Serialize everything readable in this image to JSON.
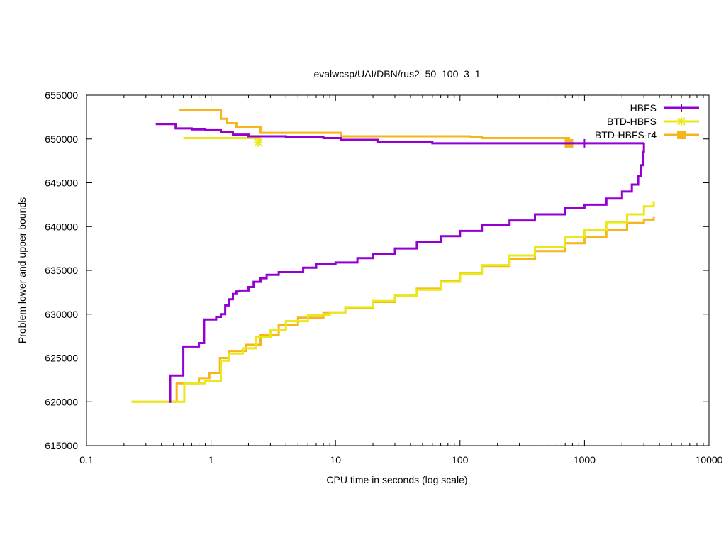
{
  "chart_data": {
    "type": "line",
    "title": "evalwcsp/UAI/DBN/rus2_50_100_3_1",
    "xlabel": "CPU time in seconds (log scale)",
    "ylabel": "Problem lower and upper bounds",
    "xscale": "log",
    "xlim": [
      0.1,
      10000
    ],
    "ylim": [
      615000,
      655000
    ],
    "xticks": [
      {
        "v": 0.1,
        "label": "0.1"
      },
      {
        "v": 1,
        "label": "1"
      },
      {
        "v": 10,
        "label": "10"
      },
      {
        "v": 100,
        "label": "100"
      },
      {
        "v": 1000,
        "label": "1000"
      },
      {
        "v": 10000,
        "label": "10000"
      }
    ],
    "yticks": [
      {
        "v": 615000,
        "label": "615000"
      },
      {
        "v": 620000,
        "label": "620000"
      },
      {
        "v": 625000,
        "label": "625000"
      },
      {
        "v": 630000,
        "label": "630000"
      },
      {
        "v": 635000,
        "label": "635000"
      },
      {
        "v": 640000,
        "label": "640000"
      },
      {
        "v": 645000,
        "label": "645000"
      },
      {
        "v": 650000,
        "label": "650000"
      },
      {
        "v": 655000,
        "label": "655000"
      }
    ],
    "legend_position": "top-right",
    "grid": false,
    "series": [
      {
        "name": "HBFS",
        "color": "#9400d3",
        "marker": "plus",
        "marker_points": [
          [
            1000,
            649500
          ]
        ],
        "upper": [
          [
            0.36,
            651700
          ],
          [
            0.52,
            651200
          ],
          [
            0.7,
            651100
          ],
          [
            0.9,
            651000
          ],
          [
            1.2,
            650800
          ],
          [
            1.5,
            650500
          ],
          [
            2.0,
            650300
          ],
          [
            4.0,
            650200
          ],
          [
            8.0,
            650100
          ],
          [
            11.0,
            649900
          ],
          [
            22.0,
            649700
          ],
          [
            60.0,
            649500
          ],
          [
            3000,
            649500
          ]
        ],
        "lower": [
          [
            0.46,
            620000
          ],
          [
            0.47,
            623000
          ],
          [
            0.6,
            626300
          ],
          [
            0.8,
            626700
          ],
          [
            0.88,
            629400
          ],
          [
            1.1,
            629700
          ],
          [
            1.2,
            630000
          ],
          [
            1.3,
            631000
          ],
          [
            1.4,
            631700
          ],
          [
            1.5,
            632300
          ],
          [
            1.6,
            632600
          ],
          [
            1.7,
            632700
          ],
          [
            2.0,
            633100
          ],
          [
            2.2,
            633700
          ],
          [
            2.5,
            634100
          ],
          [
            2.8,
            634500
          ],
          [
            3.5,
            634800
          ],
          [
            5.5,
            635300
          ],
          [
            7.0,
            635700
          ],
          [
            10.0,
            635900
          ],
          [
            15.0,
            636400
          ],
          [
            20.0,
            636900
          ],
          [
            30.0,
            637500
          ],
          [
            45.0,
            638200
          ],
          [
            70.0,
            638900
          ],
          [
            100.0,
            639500
          ],
          [
            150.0,
            640200
          ],
          [
            250.0,
            640700
          ],
          [
            400.0,
            641400
          ],
          [
            700.0,
            642100
          ],
          [
            1000.0,
            642500
          ],
          [
            1500.0,
            643200
          ],
          [
            2000.0,
            644000
          ],
          [
            2400.0,
            644800
          ],
          [
            2700.0,
            645800
          ],
          [
            2850.0,
            647000
          ],
          [
            2950.0,
            648500
          ],
          [
            3000.0,
            649500
          ]
        ]
      },
      {
        "name": "BTD-HBFS",
        "color": "#e8e81a",
        "marker": "star",
        "marker_points": [
          [
            2.4,
            649600
          ]
        ],
        "upper": [
          [
            0.6,
            650100
          ],
          [
            2.4,
            650100
          ],
          [
            2.45,
            649600
          ]
        ],
        "lower": [
          [
            0.23,
            620000
          ],
          [
            0.6,
            620000
          ],
          [
            0.61,
            622100
          ],
          [
            0.9,
            622400
          ],
          [
            1.2,
            624700
          ],
          [
            1.4,
            625500
          ],
          [
            1.8,
            626100
          ],
          [
            2.3,
            627400
          ],
          [
            3.0,
            628200
          ],
          [
            4.0,
            629200
          ],
          [
            6.0,
            629900
          ],
          [
            9.0,
            630200
          ],
          [
            12.0,
            630800
          ],
          [
            20.0,
            631500
          ],
          [
            30.0,
            632100
          ],
          [
            45.0,
            632800
          ],
          [
            70.0,
            633700
          ],
          [
            100.0,
            634600
          ],
          [
            150.0,
            635600
          ],
          [
            250.0,
            636700
          ],
          [
            400.0,
            637700
          ],
          [
            700.0,
            638800
          ],
          [
            1000.0,
            639600
          ],
          [
            1500.0,
            640500
          ],
          [
            2200.0,
            641400
          ],
          [
            3000.0,
            642300
          ],
          [
            3600.0,
            642900
          ]
        ]
      },
      {
        "name": "BTD-HBFS-r4",
        "color": "#f7b51c",
        "marker": "square",
        "marker_points": [
          [
            750,
            649500
          ]
        ],
        "upper": [
          [
            0.55,
            653300
          ],
          [
            1.2,
            652300
          ],
          [
            1.35,
            651800
          ],
          [
            1.6,
            651400
          ],
          [
            2.5,
            650700
          ],
          [
            11.0,
            650300
          ],
          [
            120.0,
            650200
          ],
          [
            150.0,
            650100
          ],
          [
            700.0,
            650100
          ],
          [
            750.0,
            649500
          ]
        ],
        "lower": [
          [
            0.23,
            620000
          ],
          [
            0.52,
            620000
          ],
          [
            0.53,
            622100
          ],
          [
            0.8,
            622700
          ],
          [
            0.97,
            623300
          ],
          [
            1.18,
            625000
          ],
          [
            1.4,
            625800
          ],
          [
            1.9,
            626500
          ],
          [
            2.5,
            627600
          ],
          [
            3.5,
            628800
          ],
          [
            5.0,
            629600
          ],
          [
            8.0,
            630200
          ],
          [
            12.0,
            630700
          ],
          [
            20.0,
            631400
          ],
          [
            30.0,
            632100
          ],
          [
            45.0,
            632900
          ],
          [
            70.0,
            633800
          ],
          [
            100.0,
            634700
          ],
          [
            150.0,
            635500
          ],
          [
            250.0,
            636300
          ],
          [
            400.0,
            637200
          ],
          [
            700.0,
            638100
          ],
          [
            1000.0,
            638800
          ],
          [
            1500.0,
            639600
          ],
          [
            2200.0,
            640400
          ],
          [
            3000.0,
            640800
          ],
          [
            3600.0,
            641100
          ]
        ]
      }
    ]
  }
}
